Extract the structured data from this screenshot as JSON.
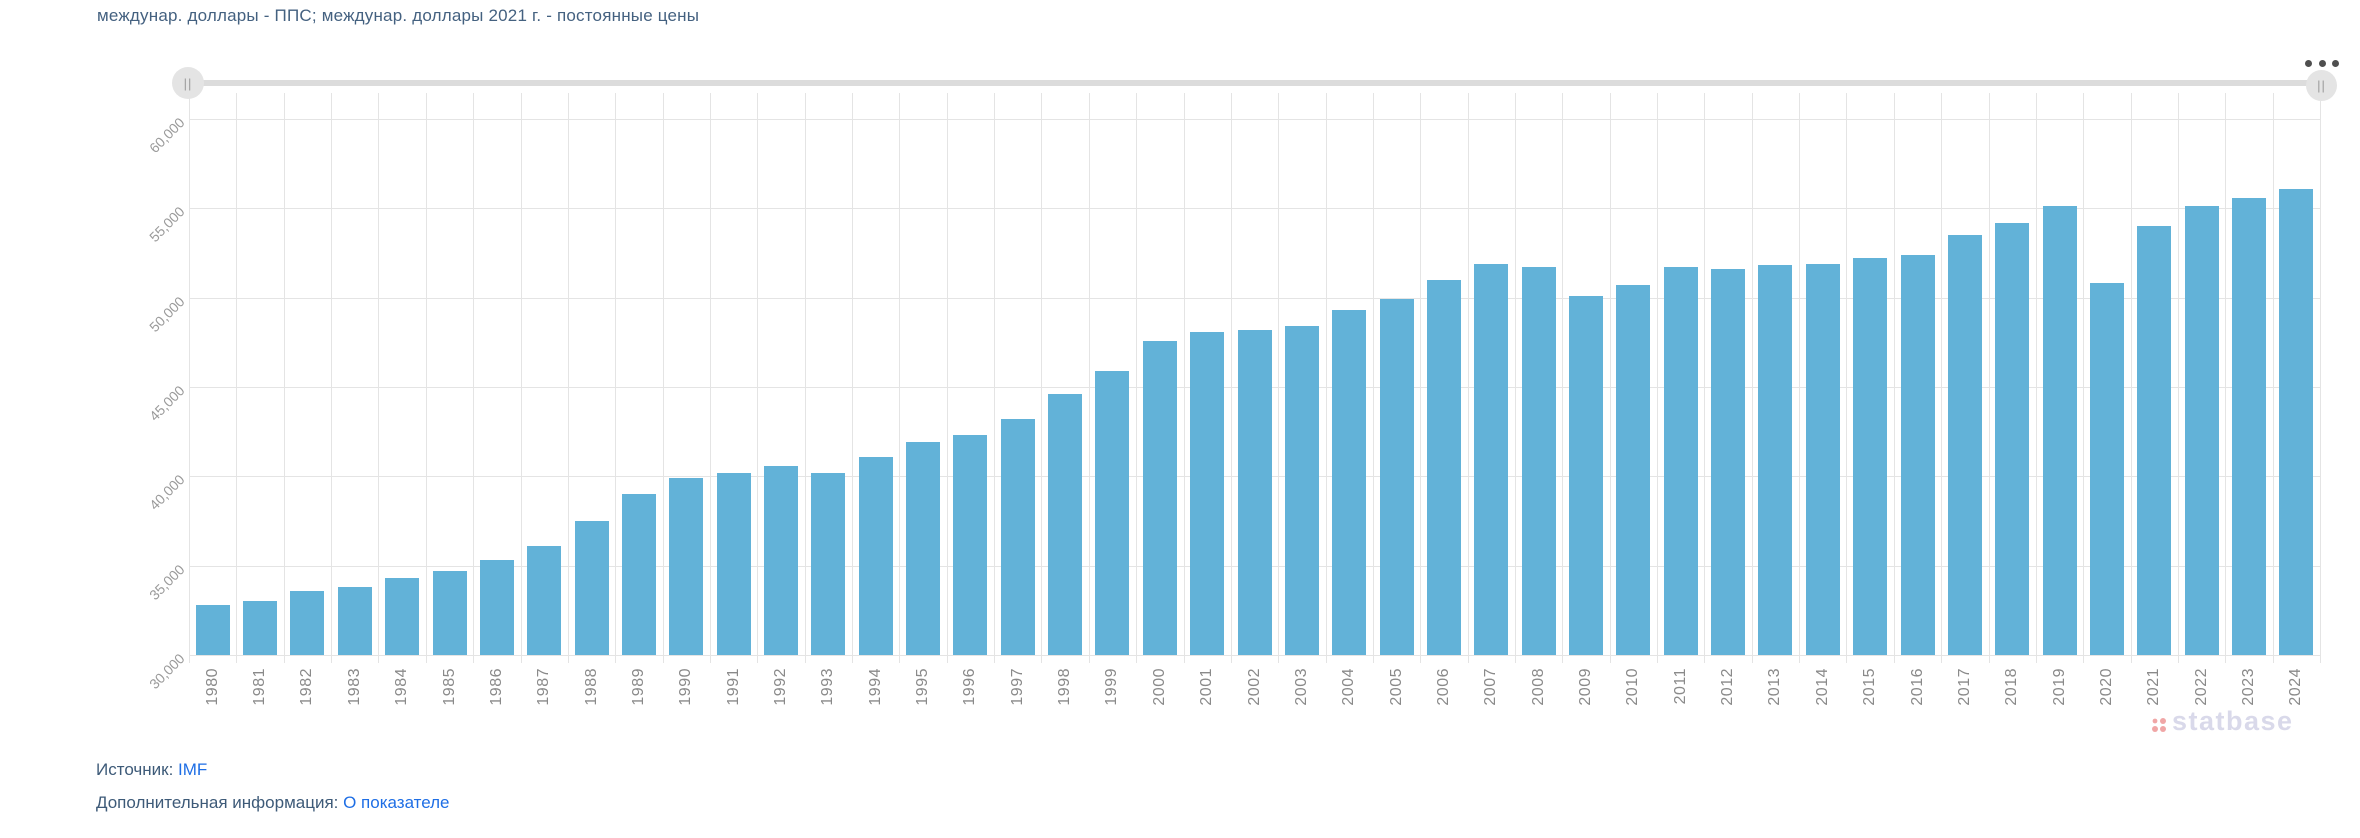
{
  "header": {
    "title": "междунар. доллары - ППС; междунар. доллары 2021 г. - постоянные цены"
  },
  "toolbar": {
    "menu_icon": "ellipsis-menu"
  },
  "slider": {
    "handle_glyph": "||"
  },
  "chart_data": {
    "type": "bar",
    "title": "междунар. доллары - ППС; междунар. доллары 2021 г. - постоянные цены",
    "categories": [
      "1980",
      "1981",
      "1982",
      "1983",
      "1984",
      "1985",
      "1986",
      "1987",
      "1988",
      "1989",
      "1990",
      "1991",
      "1992",
      "1993",
      "1994",
      "1995",
      "1996",
      "1997",
      "1998",
      "1999",
      "2000",
      "2001",
      "2002",
      "2003",
      "2004",
      "2005",
      "2006",
      "2007",
      "2008",
      "2009",
      "2010",
      "2011",
      "2012",
      "2013",
      "2014",
      "2015",
      "2016",
      "2017",
      "2018",
      "2019",
      "2020",
      "2021",
      "2022",
      "2023",
      "2024"
    ],
    "values": [
      32800,
      33000,
      33600,
      33800,
      34300,
      34700,
      35300,
      36100,
      37500,
      39000,
      39900,
      40200,
      40600,
      40200,
      41100,
      41900,
      42300,
      43200,
      44600,
      45900,
      47600,
      48100,
      48200,
      48400,
      49300,
      49900,
      51000,
      51900,
      51700,
      50100,
      50700,
      51700,
      51600,
      51800,
      51900,
      52200,
      52400,
      53500,
      54200,
      55100,
      50800,
      54000,
      55100,
      55600,
      56100
    ],
    "xlabel": "",
    "ylabel": "",
    "ylim": [
      30000,
      61300
    ],
    "yticks": [
      30000,
      35000,
      40000,
      45000,
      50000,
      55000,
      60000
    ],
    "grid": true,
    "legend": false,
    "bar_color": "#62b2d8"
  },
  "watermark": {
    "text": "statbase"
  },
  "footer": {
    "source_label": "Источник:",
    "source_link": "IMF",
    "info_label": "Дополнительная информация:",
    "info_link": "О показателе"
  }
}
